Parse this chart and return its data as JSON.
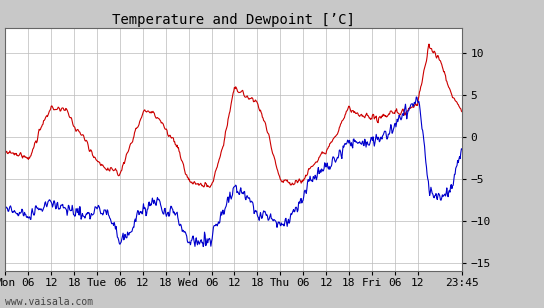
{
  "title": "Temperature and Dewpoint [’C]",
  "x_tick_labels": [
    "Mon",
    "06",
    "12",
    "18",
    "Tue",
    "06",
    "12",
    "18",
    "Wed",
    "06",
    "12",
    "18",
    "Thu",
    "06",
    "12",
    "18",
    "Fri",
    "06",
    "12",
    "23:45"
  ],
  "ylim": [
    -16,
    13
  ],
  "yticks": [
    -15,
    -10,
    -5,
    0,
    5,
    10
  ],
  "background_color": "#c8c8c8",
  "plot_bg_color": "#ffffff",
  "temp_color": "#cc0000",
  "dew_color": "#0000cc",
  "watermark": "www.vaisala.com",
  "title_fontsize": 10,
  "tick_fontsize": 8,
  "line_width": 0.8,
  "grid_color": "#bbbbbb",
  "border_color": "#888888"
}
